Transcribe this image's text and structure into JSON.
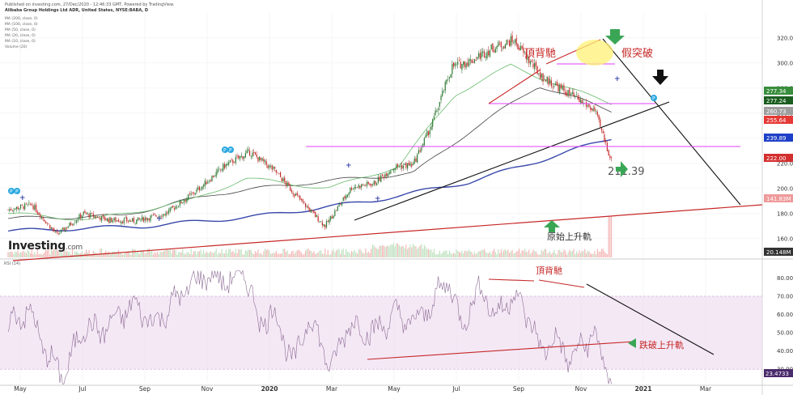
{
  "header": {
    "line1": "Published on investing.com, 27/Dec/2020 - 12:46:33 GMT, Powered by TradingView.",
    "line2": "Alibaba Group Holdings Ltd ADR, United States, NYSE:BABA, D"
  },
  "indicators": [
    "MA (200, close, 0)",
    "MA (100, close, 0)",
    "MA (50, close, 0)",
    "MA (20, close, 0)",
    "MA (10, close, 0)",
    "Volume (20)"
  ],
  "logo": {
    "main": "Investing",
    "suffix": ".com"
  },
  "rsi_label": "RSI (14)",
  "annotations": {
    "price_top": "頂背馳",
    "fake_break": "假突破",
    "current": "211.39",
    "original_trend": "原始上升軌",
    "rsi_top": "頂背馳",
    "rsi_break": "跌破上升軌"
  },
  "colors": {
    "up": "#26a69a",
    "down": "#ef5350",
    "annotation_red": "#c62828",
    "magenta": "#e040fb",
    "ma200": "#3949ab",
    "rsi_band": "#ecd9ee"
  },
  "chart_data": {
    "type": "candlestick",
    "price_axis": {
      "ticks": [
        160,
        180,
        200,
        220,
        240,
        260,
        280,
        300,
        320
      ],
      "range": [
        145,
        327
      ]
    },
    "x_labels": [
      "May",
      "Jul",
      "Sep",
      "Nov",
      "2020",
      "Mar",
      "May",
      "Jul",
      "Sep",
      "Nov",
      "2021",
      "Mar"
    ],
    "price_tags": [
      {
        "value": "277.34",
        "color": "#388e3c"
      },
      {
        "value": "277.24",
        "color": "#1b5e20"
      },
      {
        "value": "260.73",
        "color": "#9e9e9e"
      },
      {
        "value": "255.64",
        "color": "#e53935"
      },
      {
        "value": "239.89",
        "color": "#1e40c8"
      },
      {
        "value": "222.00",
        "color": "#d32f2f"
      },
      {
        "value": "141.83M",
        "color": "#ef9a9a"
      },
      {
        "value": "20.148M",
        "color": "#333333"
      }
    ],
    "price_anchors": {
      "t": [
        0,
        17,
        35,
        54,
        72,
        90,
        113,
        136,
        155,
        173,
        191,
        208,
        227,
        246,
        262,
        276,
        290,
        303,
        318,
        332,
        347,
        362,
        382,
        402,
        420,
        432
      ],
      "p": [
        183,
        187,
        163,
        180,
        175,
        174,
        180,
        199,
        218,
        229,
        214,
        192,
        170,
        201,
        204,
        217,
        219,
        250,
        297,
        302,
        312,
        318,
        289,
        275,
        262,
        222
      ]
    },
    "rsi_axis": {
      "ticks": [
        30,
        40,
        50,
        60,
        70,
        80
      ],
      "range": [
        23,
        86
      ],
      "band": [
        30,
        70
      ],
      "current": "23.4733"
    },
    "rsi_anchors": {
      "t": [
        0,
        15,
        28,
        40,
        54,
        65,
        90,
        105,
        120,
        140,
        160,
        170,
        180,
        190,
        205,
        215,
        232,
        243,
        262,
        277,
        290,
        303,
        315,
        324,
        340,
        348,
        362,
        375,
        382,
        390,
        402,
        420,
        428,
        432
      ],
      "v": [
        55,
        62,
        38,
        25,
        55,
        50,
        65,
        55,
        68,
        82,
        78,
        83,
        55,
        62,
        32,
        60,
        30,
        55,
        50,
        60,
        55,
        65,
        80,
        55,
        76,
        58,
        72,
        55,
        38,
        48,
        35,
        50,
        28,
        23.5
      ]
    },
    "moving_averages": [
      {
        "name": "MA (200, close, 0)",
        "color": "#3949ab",
        "t": [
          0,
          100,
          180,
          260,
          330,
          380,
          432
        ],
        "p": [
          166,
          170,
          178,
          190,
          205,
          222,
          240
        ]
      },
      {
        "name": "MA (100, close, 0)",
        "color": "#444444",
        "t": [
          0,
          80,
          150,
          210,
          290,
          330,
          380,
          432
        ],
        "p": [
          176,
          178,
          196,
          204,
          212,
          245,
          282,
          262
        ]
      },
      {
        "name": "MA (50, close, 0)",
        "color": "#66bb6a",
        "t": [
          0,
          60,
          130,
          170,
          230,
          280,
          320,
          360,
          400,
          432
        ],
        "p": [
          180,
          175,
          190,
          208,
          200,
          218,
          275,
          298,
          280,
          268
        ]
      }
    ]
  }
}
